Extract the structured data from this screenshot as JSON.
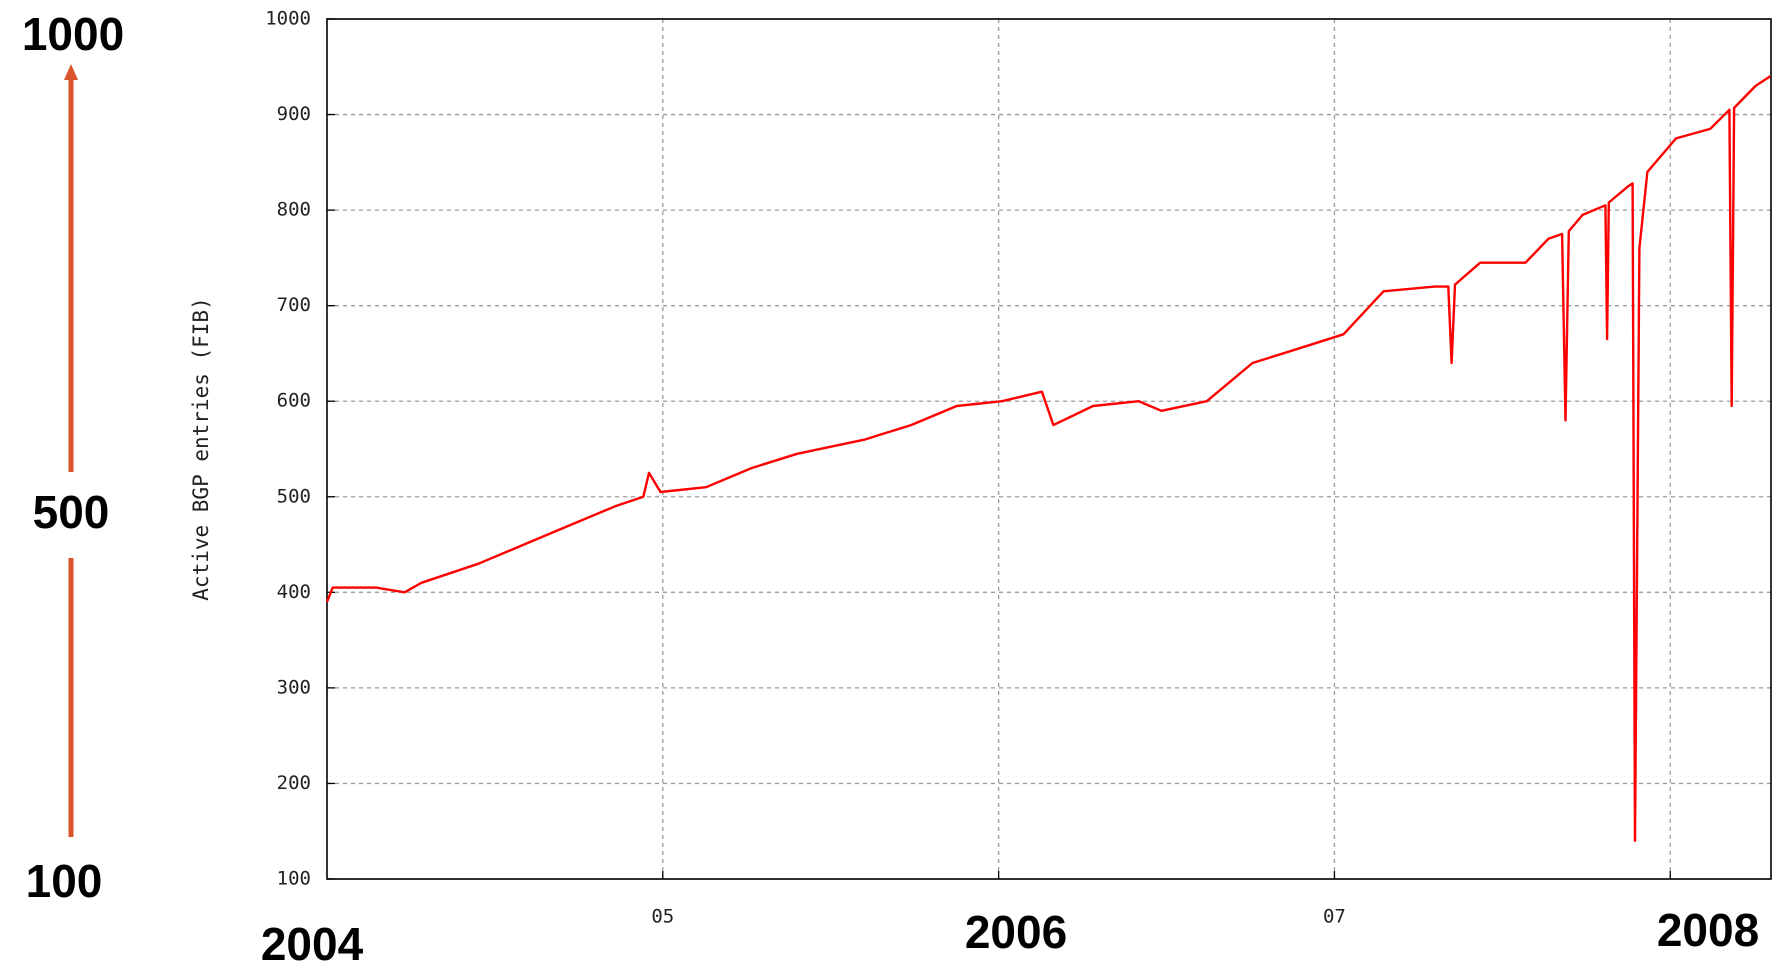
{
  "chart_data": {
    "type": "line",
    "y_label": "Active BGP entries (FIB)",
    "x": [
      2004.0,
      2004.017,
      2004.146,
      2004.231,
      2004.281,
      2004.451,
      2004.586,
      2004.722,
      2004.858,
      2004.942,
      2004.959,
      2004.993,
      2005.129,
      2005.264,
      2005.4,
      2005.603,
      2005.739,
      2005.875,
      2006.01,
      2006.129,
      2006.163,
      2006.281,
      2006.417,
      2006.485,
      2006.62,
      2006.756,
      2006.892,
      2007.027,
      2007.146,
      2007.298,
      2007.339,
      2007.349,
      2007.359,
      2007.434,
      2007.569,
      2007.637,
      2007.678,
      2007.688,
      2007.698,
      2007.739,
      2007.807,
      2007.812,
      2007.817,
      2007.875,
      2007.888,
      2007.895,
      2007.908,
      2007.932,
      2008.017,
      2008.119,
      2008.176,
      2008.183,
      2008.19,
      2008.254,
      2008.298
    ],
    "series": [
      {
        "name": "Active BGP entries",
        "color": "#ff0000",
        "values": [
          390,
          405,
          405,
          400,
          410,
          430,
          450,
          470,
          490,
          500,
          525,
          505,
          510,
          530,
          545,
          560,
          575,
          595,
          600,
          610,
          575,
          595,
          600,
          590,
          600,
          640,
          655,
          670,
          715,
          720,
          720,
          640,
          722,
          745,
          745,
          770,
          775,
          580,
          778,
          795,
          805,
          665,
          808,
          825,
          828,
          140,
          760,
          840,
          875,
          885,
          905,
          595,
          907,
          930,
          940
        ]
      }
    ],
    "xlim": [
      2004.0,
      2008.3
    ],
    "xticks": [
      {
        "value": 2005,
        "label": "05"
      },
      {
        "value": 2006,
        "label": null
      },
      {
        "value": 2007,
        "label": "07"
      },
      {
        "value": 2008,
        "label": null
      }
    ],
    "ylim": [
      100,
      1000
    ],
    "yticks": [
      100,
      200,
      300,
      400,
      500,
      600,
      700,
      800,
      900,
      1000
    ],
    "grid": true,
    "annotations": [
      "1000",
      "500",
      "100",
      "2004",
      "2006",
      "2008"
    ]
  }
}
